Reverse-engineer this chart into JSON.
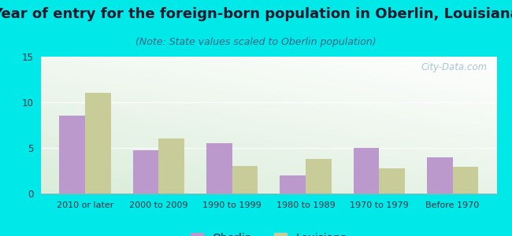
{
  "categories": [
    "2010 or later",
    "2000 to 2009",
    "1990 to 1999",
    "1980 to 1989",
    "1970 to 1979",
    "Before 1970"
  ],
  "oberlin_values": [
    8.5,
    4.7,
    5.5,
    2.0,
    5.0,
    4.0
  ],
  "louisiana_values": [
    11.0,
    6.0,
    3.0,
    3.8,
    2.8,
    2.9
  ],
  "oberlin_color": "#bb99cc",
  "louisiana_color": "#c8cc99",
  "title": "Year of entry for the foreign-born population in Oberlin, Louisiana",
  "subtitle": "(Note: State values scaled to Oberlin population)",
  "title_fontsize": 13,
  "subtitle_fontsize": 9,
  "ylim": [
    0,
    15
  ],
  "yticks": [
    0,
    5,
    10,
    15
  ],
  "background_color": "#00e8e8",
  "plot_bg_topleft": "#d8edd8",
  "plot_bg_topright": "#f0f8f0",
  "plot_bg_bottom": "#e8f4e8",
  "bar_width": 0.35,
  "legend_oberlin": "Oberlin",
  "legend_louisiana": "Louisiana",
  "watermark": "City-Data.com",
  "title_color": "#1a1a2e",
  "subtitle_color": "#336688",
  "tick_color": "#223344",
  "watermark_color": "#99bbcc"
}
